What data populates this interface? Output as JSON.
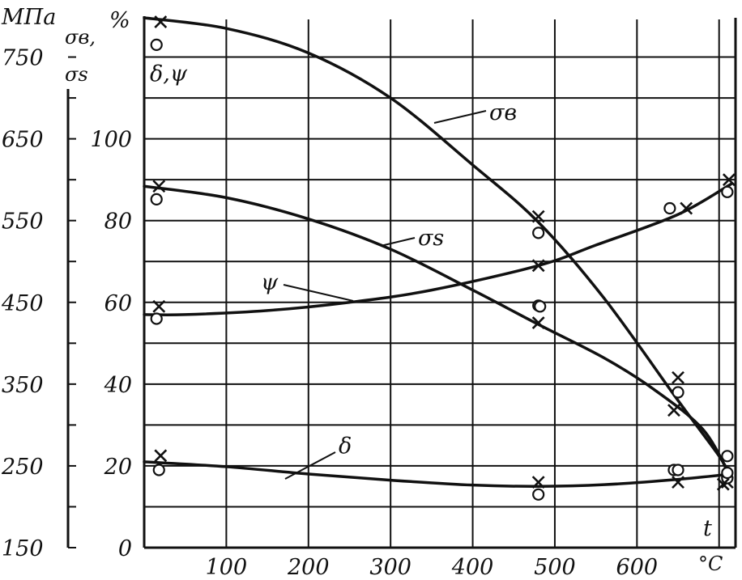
{
  "chart_data": {
    "type": "line",
    "units": {
      "left": "МПа",
      "left_series": [
        "σв,",
        "σs"
      ],
      "right": "%",
      "right_series": "δ,ψ",
      "x": "t",
      "x_unit": "°C"
    },
    "x_ticks": [
      "100",
      "200",
      "300",
      "400",
      "500",
      "600"
    ],
    "x_range": [
      0,
      720
    ],
    "left_ticks": [
      "750",
      "650",
      "550",
      "450",
      "350",
      "250",
      "150"
    ],
    "left_range": [
      150,
      800
    ],
    "right_ticks": [
      "0",
      "20",
      "40",
      "60",
      "80",
      "100"
    ],
    "right_range": [
      0,
      130
    ],
    "curve_labels": [
      "σв",
      "σs",
      "ψ",
      "δ"
    ],
    "series": [
      {
        "name": "σв",
        "axis": "left",
        "curve": [
          [
            0,
            798
          ],
          [
            100,
            785
          ],
          [
            200,
            755
          ],
          [
            300,
            700
          ],
          [
            400,
            618
          ],
          [
            480,
            548
          ],
          [
            560,
            455
          ],
          [
            650,
            330
          ],
          [
            700,
            262
          ],
          [
            712,
            240
          ]
        ],
        "crosses": [
          [
            20,
            793
          ],
          [
            480,
            555
          ],
          [
            650,
            358
          ]
        ],
        "circles": [
          [
            15,
            765
          ],
          [
            480,
            535
          ],
          [
            650,
            340
          ],
          [
            710,
            262
          ]
        ]
      },
      {
        "name": "σs",
        "axis": "left",
        "curve": [
          [
            0,
            592
          ],
          [
            100,
            578
          ],
          [
            200,
            552
          ],
          [
            300,
            515
          ],
          [
            400,
            465
          ],
          [
            480,
            423
          ],
          [
            560,
            382
          ],
          [
            620,
            344
          ],
          [
            680,
            295
          ],
          [
            712,
            240
          ]
        ],
        "crosses": [
          [
            18,
            592
          ],
          [
            480,
            425
          ],
          [
            645,
            318
          ],
          [
            710,
            230
          ]
        ],
        "circles": [
          [
            15,
            576
          ],
          [
            480,
            446
          ],
          [
            645,
            245
          ],
          [
            710,
            235
          ]
        ]
      },
      {
        "name": "ψ",
        "axis": "right",
        "curve": [
          [
            0,
            57
          ],
          [
            50,
            57
          ],
          [
            150,
            58
          ],
          [
            250,
            60
          ],
          [
            350,
            63
          ],
          [
            480,
            69
          ],
          [
            550,
            74
          ],
          [
            650,
            81.5
          ],
          [
            715,
            89
          ]
        ],
        "crosses": [
          [
            18,
            59
          ],
          [
            480,
            69
          ],
          [
            660,
            83
          ],
          [
            712,
            90
          ]
        ],
        "circles": [
          [
            15,
            56
          ],
          [
            482,
            59
          ],
          [
            640,
            83
          ],
          [
            710,
            87
          ]
        ]
      },
      {
        "name": "δ",
        "axis": "right",
        "curve": [
          [
            0,
            21
          ],
          [
            100,
            19.8
          ],
          [
            200,
            18
          ],
          [
            300,
            16.5
          ],
          [
            400,
            15.3
          ],
          [
            480,
            15
          ],
          [
            560,
            15.4
          ],
          [
            650,
            16.7
          ],
          [
            715,
            18
          ]
        ],
        "crosses": [
          [
            20,
            22.5
          ],
          [
            480,
            16
          ],
          [
            650,
            16
          ],
          [
            705,
            15.5
          ]
        ],
        "circles": [
          [
            18,
            19
          ],
          [
            480,
            13
          ],
          [
            650,
            19
          ],
          [
            710,
            18.3
          ]
        ]
      }
    ]
  }
}
